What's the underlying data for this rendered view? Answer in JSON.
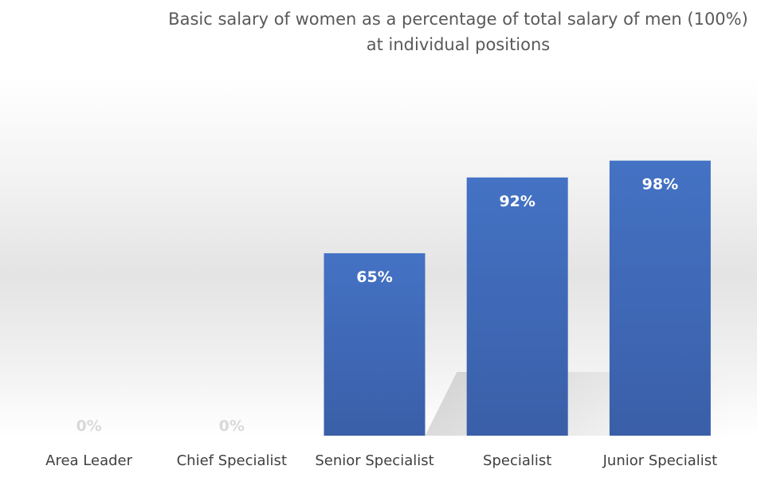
{
  "chart_data": {
    "type": "bar",
    "title": "Basic salary of women as a percentage of total salary of men (100%)\nat individual positions",
    "categories": [
      "Area Leader",
      "Chief Specialist",
      "Senior Specialist",
      "Specialist",
      "Junior Specialist"
    ],
    "values": [
      0,
      0,
      65,
      92,
      98
    ],
    "data_labels": [
      "0%",
      "0%",
      "65%",
      "92%",
      "98%"
    ],
    "ylim": [
      0,
      105
    ],
    "grid": false,
    "legend": "none",
    "bar_color": "#4472C4",
    "bar_color_dark": "#3A5FA8",
    "label_color_inside": "#ffffff",
    "label_color_zero": "#d9d9d9"
  }
}
